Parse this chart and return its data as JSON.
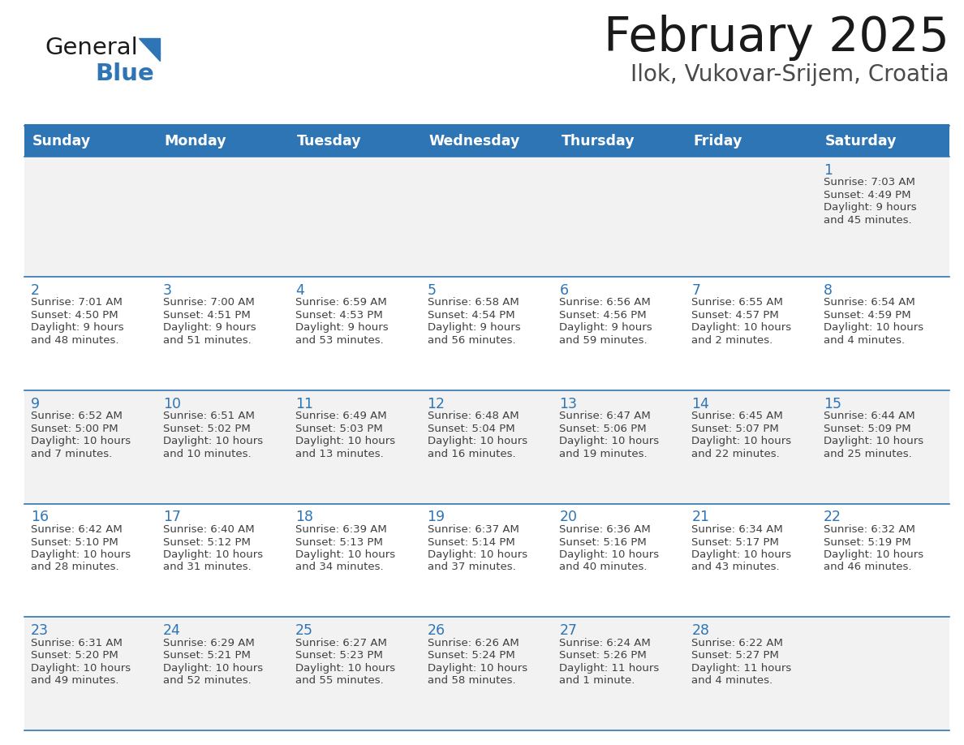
{
  "title": "February 2025",
  "subtitle": "Ilok, Vukovar-Srijem, Croatia",
  "header_bg": "#2E75B6",
  "header_text": "#FFFFFF",
  "row_bg": [
    "#F2F2F2",
    "#FFFFFF",
    "#F2F2F2",
    "#FFFFFF",
    "#F2F2F2"
  ],
  "border_color": "#2E75B6",
  "day_headers": [
    "Sunday",
    "Monday",
    "Tuesday",
    "Wednesday",
    "Thursday",
    "Friday",
    "Saturday"
  ],
  "logo_general_color": "#1a1a1a",
  "logo_blue_color": "#2E75B6",
  "title_color": "#1a1a1a",
  "subtitle_color": "#4a4a4a",
  "day_num_color": "#2E75B6",
  "cell_text_color": "#404040",
  "days": [
    {
      "date": 1,
      "col": 6,
      "row": 0,
      "sunrise": "7:03 AM",
      "sunset": "4:49 PM",
      "daylight_line1": "Daylight: 9 hours",
      "daylight_line2": "and 45 minutes."
    },
    {
      "date": 2,
      "col": 0,
      "row": 1,
      "sunrise": "7:01 AM",
      "sunset": "4:50 PM",
      "daylight_line1": "Daylight: 9 hours",
      "daylight_line2": "and 48 minutes."
    },
    {
      "date": 3,
      "col": 1,
      "row": 1,
      "sunrise": "7:00 AM",
      "sunset": "4:51 PM",
      "daylight_line1": "Daylight: 9 hours",
      "daylight_line2": "and 51 minutes."
    },
    {
      "date": 4,
      "col": 2,
      "row": 1,
      "sunrise": "6:59 AM",
      "sunset": "4:53 PM",
      "daylight_line1": "Daylight: 9 hours",
      "daylight_line2": "and 53 minutes."
    },
    {
      "date": 5,
      "col": 3,
      "row": 1,
      "sunrise": "6:58 AM",
      "sunset": "4:54 PM",
      "daylight_line1": "Daylight: 9 hours",
      "daylight_line2": "and 56 minutes."
    },
    {
      "date": 6,
      "col": 4,
      "row": 1,
      "sunrise": "6:56 AM",
      "sunset": "4:56 PM",
      "daylight_line1": "Daylight: 9 hours",
      "daylight_line2": "and 59 minutes."
    },
    {
      "date": 7,
      "col": 5,
      "row": 1,
      "sunrise": "6:55 AM",
      "sunset": "4:57 PM",
      "daylight_line1": "Daylight: 10 hours",
      "daylight_line2": "and 2 minutes."
    },
    {
      "date": 8,
      "col": 6,
      "row": 1,
      "sunrise": "6:54 AM",
      "sunset": "4:59 PM",
      "daylight_line1": "Daylight: 10 hours",
      "daylight_line2": "and 4 minutes."
    },
    {
      "date": 9,
      "col": 0,
      "row": 2,
      "sunrise": "6:52 AM",
      "sunset": "5:00 PM",
      "daylight_line1": "Daylight: 10 hours",
      "daylight_line2": "and 7 minutes."
    },
    {
      "date": 10,
      "col": 1,
      "row": 2,
      "sunrise": "6:51 AM",
      "sunset": "5:02 PM",
      "daylight_line1": "Daylight: 10 hours",
      "daylight_line2": "and 10 minutes."
    },
    {
      "date": 11,
      "col": 2,
      "row": 2,
      "sunrise": "6:49 AM",
      "sunset": "5:03 PM",
      "daylight_line1": "Daylight: 10 hours",
      "daylight_line2": "and 13 minutes."
    },
    {
      "date": 12,
      "col": 3,
      "row": 2,
      "sunrise": "6:48 AM",
      "sunset": "5:04 PM",
      "daylight_line1": "Daylight: 10 hours",
      "daylight_line2": "and 16 minutes."
    },
    {
      "date": 13,
      "col": 4,
      "row": 2,
      "sunrise": "6:47 AM",
      "sunset": "5:06 PM",
      "daylight_line1": "Daylight: 10 hours",
      "daylight_line2": "and 19 minutes."
    },
    {
      "date": 14,
      "col": 5,
      "row": 2,
      "sunrise": "6:45 AM",
      "sunset": "5:07 PM",
      "daylight_line1": "Daylight: 10 hours",
      "daylight_line2": "and 22 minutes."
    },
    {
      "date": 15,
      "col": 6,
      "row": 2,
      "sunrise": "6:44 AM",
      "sunset": "5:09 PM",
      "daylight_line1": "Daylight: 10 hours",
      "daylight_line2": "and 25 minutes."
    },
    {
      "date": 16,
      "col": 0,
      "row": 3,
      "sunrise": "6:42 AM",
      "sunset": "5:10 PM",
      "daylight_line1": "Daylight: 10 hours",
      "daylight_line2": "and 28 minutes."
    },
    {
      "date": 17,
      "col": 1,
      "row": 3,
      "sunrise": "6:40 AM",
      "sunset": "5:12 PM",
      "daylight_line1": "Daylight: 10 hours",
      "daylight_line2": "and 31 minutes."
    },
    {
      "date": 18,
      "col": 2,
      "row": 3,
      "sunrise": "6:39 AM",
      "sunset": "5:13 PM",
      "daylight_line1": "Daylight: 10 hours",
      "daylight_line2": "and 34 minutes."
    },
    {
      "date": 19,
      "col": 3,
      "row": 3,
      "sunrise": "6:37 AM",
      "sunset": "5:14 PM",
      "daylight_line1": "Daylight: 10 hours",
      "daylight_line2": "and 37 minutes."
    },
    {
      "date": 20,
      "col": 4,
      "row": 3,
      "sunrise": "6:36 AM",
      "sunset": "5:16 PM",
      "daylight_line1": "Daylight: 10 hours",
      "daylight_line2": "and 40 minutes."
    },
    {
      "date": 21,
      "col": 5,
      "row": 3,
      "sunrise": "6:34 AM",
      "sunset": "5:17 PM",
      "daylight_line1": "Daylight: 10 hours",
      "daylight_line2": "and 43 minutes."
    },
    {
      "date": 22,
      "col": 6,
      "row": 3,
      "sunrise": "6:32 AM",
      "sunset": "5:19 PM",
      "daylight_line1": "Daylight: 10 hours",
      "daylight_line2": "and 46 minutes."
    },
    {
      "date": 23,
      "col": 0,
      "row": 4,
      "sunrise": "6:31 AM",
      "sunset": "5:20 PM",
      "daylight_line1": "Daylight: 10 hours",
      "daylight_line2": "and 49 minutes."
    },
    {
      "date": 24,
      "col": 1,
      "row": 4,
      "sunrise": "6:29 AM",
      "sunset": "5:21 PM",
      "daylight_line1": "Daylight: 10 hours",
      "daylight_line2": "and 52 minutes."
    },
    {
      "date": 25,
      "col": 2,
      "row": 4,
      "sunrise": "6:27 AM",
      "sunset": "5:23 PM",
      "daylight_line1": "Daylight: 10 hours",
      "daylight_line2": "and 55 minutes."
    },
    {
      "date": 26,
      "col": 3,
      "row": 4,
      "sunrise": "6:26 AM",
      "sunset": "5:24 PM",
      "daylight_line1": "Daylight: 10 hours",
      "daylight_line2": "and 58 minutes."
    },
    {
      "date": 27,
      "col": 4,
      "row": 4,
      "sunrise": "6:24 AM",
      "sunset": "5:26 PM",
      "daylight_line1": "Daylight: 11 hours",
      "daylight_line2": "and 1 minute."
    },
    {
      "date": 28,
      "col": 5,
      "row": 4,
      "sunrise": "6:22 AM",
      "sunset": "5:27 PM",
      "daylight_line1": "Daylight: 11 hours",
      "daylight_line2": "and 4 minutes."
    }
  ]
}
